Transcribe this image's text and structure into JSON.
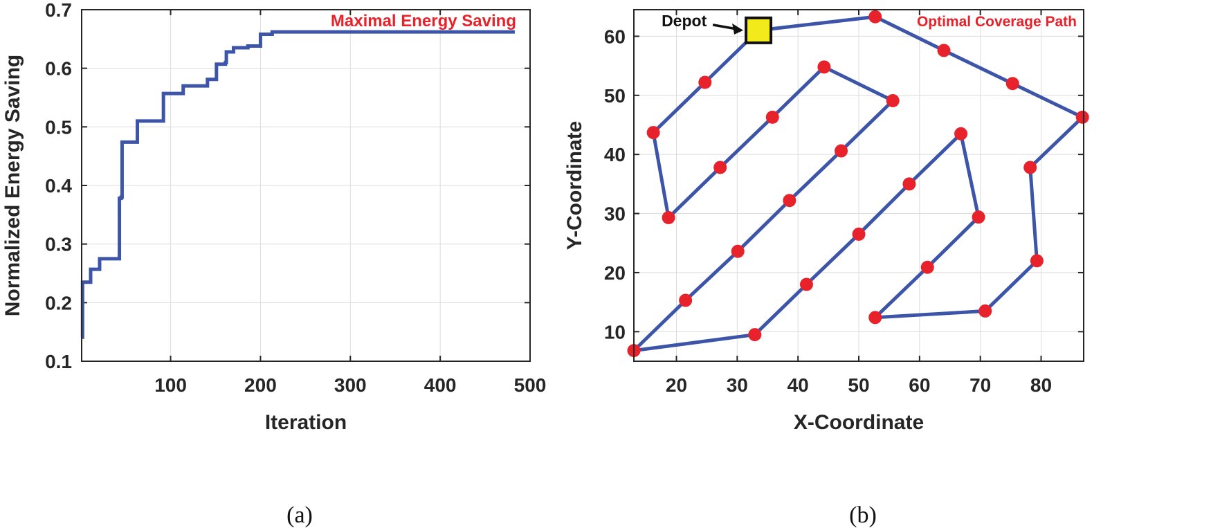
{
  "chart_data": [
    {
      "id": "a",
      "type": "line",
      "caption": "(a)",
      "title": "",
      "annotation": "Maximal Energy Saving",
      "xlabel": "Iteration",
      "ylabel": "Normalized Energy Saving",
      "xlim": [
        1,
        500
      ],
      "ylim": [
        0.1,
        0.7
      ],
      "xticks": [
        100,
        200,
        300,
        400,
        500
      ],
      "yticks": [
        0.1,
        0.2,
        0.3,
        0.4,
        0.5,
        0.6,
        0.7
      ],
      "xtick_labels": [
        "100",
        "200",
        "300",
        "400",
        "500"
      ],
      "ytick_labels": [
        "0.1",
        "0.2",
        "0.3",
        "0.4",
        "0.5",
        "0.6",
        "0.7"
      ],
      "grid": true,
      "line_color": "#3d55a8",
      "series": [
        {
          "name": "Normalized Energy Saving",
          "step": true,
          "points": [
            [
              1,
              0.141
            ],
            [
              2,
              0.235
            ],
            [
              10,
              0.235
            ],
            [
              11,
              0.257
            ],
            [
              20,
              0.257
            ],
            [
              21,
              0.275
            ],
            [
              42,
              0.275
            ],
            [
              43,
              0.378
            ],
            [
              45,
              0.38
            ],
            [
              46,
              0.474
            ],
            [
              62,
              0.474
            ],
            [
              63,
              0.51
            ],
            [
              91,
              0.51
            ],
            [
              92,
              0.557
            ],
            [
              113,
              0.557
            ],
            [
              114,
              0.57
            ],
            [
              140,
              0.57
            ],
            [
              141,
              0.581
            ],
            [
              150,
              0.581
            ],
            [
              151,
              0.607
            ],
            [
              161,
              0.61
            ],
            [
              162,
              0.628
            ],
            [
              169,
              0.628
            ],
            [
              170,
              0.635
            ],
            [
              185,
              0.635
            ],
            [
              186,
              0.638
            ],
            [
              199,
              0.638
            ],
            [
              200,
              0.658
            ],
            [
              212,
              0.658
            ],
            [
              213,
              0.662
            ],
            [
              483,
              0.662
            ]
          ]
        }
      ]
    },
    {
      "id": "b",
      "type": "line",
      "caption": "(b)",
      "title": "",
      "annotation": "Optimal Coverage Path",
      "xlabel": "X-Coordinate",
      "ylabel": "Y-Coordinate",
      "xlim": [
        13,
        87
      ],
      "ylim": [
        5,
        64.5
      ],
      "xticks": [
        20,
        30,
        40,
        50,
        60,
        70,
        80
      ],
      "yticks": [
        10,
        20,
        30,
        40,
        50,
        60
      ],
      "xtick_labels": [
        "20",
        "30",
        "40",
        "50",
        "60",
        "70",
        "80"
      ],
      "ytick_labels": [
        "10",
        "20",
        "30",
        "40",
        "50",
        "60"
      ],
      "grid": true,
      "line_color": "#3d55a8",
      "marker_color": "#e8222a",
      "depot": {
        "label": "Depot",
        "x": 33.5,
        "y": 61,
        "color": "#f2ea1b"
      },
      "path": [
        [
          33.5,
          61
        ],
        [
          52.7,
          63.3
        ],
        [
          64,
          57.6
        ],
        [
          75.3,
          52
        ],
        [
          86.8,
          46.3
        ],
        [
          78.2,
          37.8
        ],
        [
          79.3,
          22
        ],
        [
          70.8,
          13.5
        ],
        [
          52.7,
          12.4
        ],
        [
          61.3,
          20.9
        ],
        [
          69.7,
          29.4
        ],
        [
          66.8,
          43.5
        ],
        [
          58.3,
          35
        ],
        [
          50,
          26.5
        ],
        [
          41.4,
          18
        ],
        [
          32.9,
          9.5
        ],
        [
          13,
          6.8
        ],
        [
          21.5,
          15.3
        ],
        [
          30.1,
          23.6
        ],
        [
          38.6,
          32.2
        ],
        [
          47.1,
          40.6
        ],
        [
          55.6,
          49.1
        ],
        [
          44.3,
          54.8
        ],
        [
          35.8,
          46.3
        ],
        [
          27.2,
          37.8
        ],
        [
          18.7,
          29.3
        ],
        [
          16.2,
          43.7
        ],
        [
          24.7,
          52.2
        ],
        [
          33.5,
          61
        ]
      ]
    }
  ]
}
